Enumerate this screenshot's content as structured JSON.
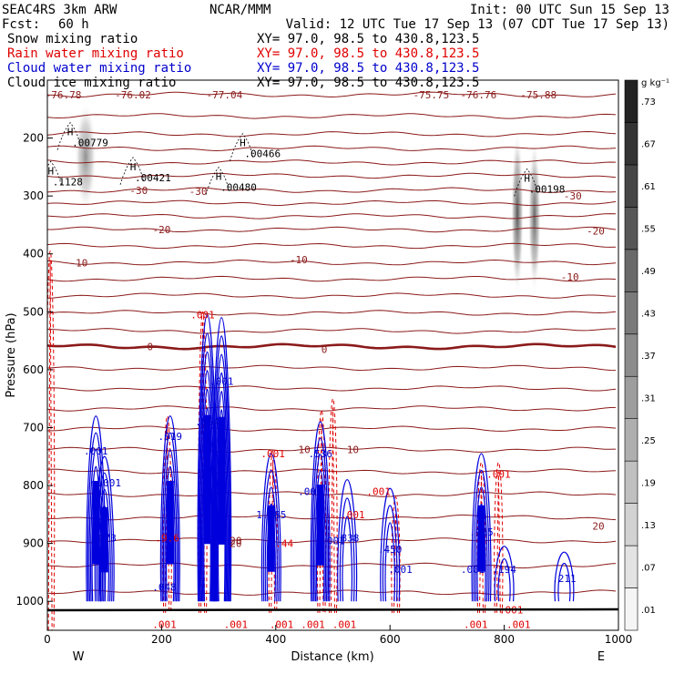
{
  "header": {
    "model": "SEAC4RS   3km ARW",
    "institution": "NCAR/MMM",
    "init": "Init: 00 UTC Sun 15 Sep 13",
    "fcst_label": "Fcst:",
    "fcst_value": "60 h",
    "valid": "Valid: 12 UTC Tue 17 Sep 13 (07 CDT Tue 17 Sep 13)"
  },
  "fields": [
    {
      "name": "Snow mixing ratio",
      "xy": "XY=  97.0, 98.5 to 430.8,123.5",
      "color": "#000000"
    },
    {
      "name": "Rain water mixing ratio",
      "xy": "XY=  97.0, 98.5 to 430.8,123.5",
      "color": "#e00000"
    },
    {
      "name": "Cloud water mixing ratio",
      "xy": "XY=  97.0, 98.5 to 430.8,123.5",
      "color": "#0000cc"
    },
    {
      "name": "Cloud ice mixing ratio",
      "xy": "XY=  97.0, 98.5 to 430.8,123.5",
      "color": "#000000"
    }
  ],
  "colorbar": {
    "unit": "g kg⁻¹",
    "labels": [
      ".01",
      ".07",
      ".13",
      ".19",
      ".25",
      ".31",
      ".37",
      ".43",
      ".49",
      ".55",
      ".61",
      ".67",
      ".73"
    ]
  },
  "chart_data": {
    "type": "contour cross-section",
    "xlabel": "Distance (km)",
    "ylabel": "Pressure (hPa)",
    "xlim": [
      0,
      1000
    ],
    "ylim": [
      1050,
      100
    ],
    "x_ticks": [
      "0",
      "200",
      "400",
      "600",
      "800",
      "1000"
    ],
    "y_ticks": [
      "200",
      "300",
      "400",
      "500",
      "600",
      "700",
      "800",
      "900",
      "1000"
    ],
    "x_tick_values": [
      0,
      200,
      400,
      600,
      800,
      1000
    ],
    "y_tick_values": [
      200,
      300,
      400,
      500,
      600,
      700,
      800,
      900,
      1000
    ],
    "direction_labels": [
      "W",
      "E"
    ],
    "temperature_contours": [
      {
        "p": 125,
        "label": "-77.04",
        "lx": 310
      },
      {
        "p": 162,
        "label": "",
        "lx": 0
      },
      {
        "p": 193,
        "label": "",
        "lx": 0
      },
      {
        "p": 218,
        "label": "",
        "lx": 0
      },
      {
        "p": 242,
        "label": "",
        "lx": 0
      },
      {
        "p": 265,
        "label": "",
        "lx": 0
      },
      {
        "p": 290,
        "label": "-30",
        "lx": 160
      },
      {
        "p": 312,
        "label": "",
        "lx": 0
      },
      {
        "p": 335,
        "label": "",
        "lx": 0
      },
      {
        "p": 358,
        "label": "-20",
        "lx": 200
      },
      {
        "p": 386,
        "label": "",
        "lx": 0
      },
      {
        "p": 415,
        "label": "-10",
        "lx": 55
      },
      {
        "p": 443,
        "label": "",
        "lx": 0
      },
      {
        "p": 472,
        "label": "",
        "lx": 0
      },
      {
        "p": 502,
        "label": "",
        "lx": 0
      },
      {
        "p": 533,
        "label": "",
        "lx": 0
      },
      {
        "p": 560,
        "label": "0",
        "lx": 180,
        "bold": true
      },
      {
        "p": 597,
        "label": "",
        "lx": 0
      },
      {
        "p": 632,
        "label": "",
        "lx": 0
      },
      {
        "p": 667,
        "label": "",
        "lx": 0
      },
      {
        "p": 702,
        "label": "",
        "lx": 0
      },
      {
        "p": 738,
        "label": "10",
        "lx": 450
      },
      {
        "p": 776,
        "label": "",
        "lx": 0
      },
      {
        "p": 815,
        "label": "",
        "lx": 0
      },
      {
        "p": 855,
        "label": "",
        "lx": 0
      },
      {
        "p": 895,
        "label": "20",
        "lx": 330
      },
      {
        "p": 938,
        "label": "",
        "lx": 0
      },
      {
        "p": 985,
        "label": "",
        "lx": 0
      }
    ],
    "extra_temperature_labels": [
      {
        "x": 28,
        "p": 125,
        "t": "-76.78"
      },
      {
        "x": 150,
        "p": 125,
        "t": "-76.02"
      },
      {
        "x": 672,
        "p": 125,
        "t": "-75.75"
      },
      {
        "x": 755,
        "p": 125,
        "t": "-76.76"
      },
      {
        "x": 860,
        "p": 125,
        "t": "-75.88"
      },
      {
        "x": 264,
        "p": 292,
        "t": "-30"
      },
      {
        "x": 920,
        "p": 300,
        "t": "-30"
      },
      {
        "x": 960,
        "p": 360,
        "t": "-20"
      },
      {
        "x": 440,
        "p": 410,
        "t": "-10"
      },
      {
        "x": 915,
        "p": 440,
        "t": "-10"
      },
      {
        "x": 485,
        "p": 565,
        "t": "0"
      },
      {
        "x": 535,
        "p": 738,
        "t": "10"
      },
      {
        "x": 330,
        "p": 900,
        "t": "20"
      },
      {
        "x": 965,
        "p": 870,
        "t": "20"
      }
    ],
    "ice_maxima": [
      {
        "x": 40,
        "p": 208,
        "label": ".00779"
      },
      {
        "x": 6,
        "p": 275,
        "label": ".1128"
      },
      {
        "x": 150,
        "p": 268,
        "label": ".00421"
      },
      {
        "x": 300,
        "p": 285,
        "label": ".00480"
      },
      {
        "x": 342,
        "p": 227,
        "label": ".00466"
      },
      {
        "x": 840,
        "p": 288,
        "label": ".00198"
      }
    ],
    "shaded_ice": [
      {
        "x": 67,
        "p": 232,
        "rx": 12,
        "ry": 60,
        "v": 0.25
      },
      {
        "x": 823,
        "p": 330,
        "rx": 7,
        "ry": 90,
        "v": 0.67
      },
      {
        "x": 853,
        "p": 335,
        "rx": 7,
        "ry": 85,
        "v": 0.5
      }
    ],
    "cloud_water_columns": [
      {
        "x": 85,
        "top": 680,
        "bottom": 1000,
        "label": ".001",
        "lp": 740
      },
      {
        "x": 100,
        "top": 750,
        "bottom": 1000,
        "label": ".673",
        "lp": 890
      },
      {
        "x": 215,
        "top": 680,
        "bottom": 1000,
        "label": ".019",
        "lp": 715
      },
      {
        "x": 280,
        "top": 505,
        "bottom": 1000,
        "label": ".854",
        "lp": 690
      },
      {
        "x": 305,
        "top": 510,
        "bottom": 1000,
        "label": ".001",
        "lp": 620
      },
      {
        "x": 392,
        "top": 745,
        "bottom": 1000,
        "label": "1.085",
        "lp": 850
      },
      {
        "x": 478,
        "top": 690,
        "bottom": 1000,
        "label": ".536",
        "lp": 745
      },
      {
        "x": 525,
        "top": 790,
        "bottom": 1000,
        "label": ".838",
        "lp": 890
      },
      {
        "x": 600,
        "top": 805,
        "bottom": 1000,
        "label": ".450",
        "lp": 910
      },
      {
        "x": 760,
        "top": 745,
        "bottom": 1000,
        "label": ".985",
        "lp": 880
      },
      {
        "x": 800,
        "top": 905,
        "bottom": 1000,
        "label": ".194",
        "lp": 945
      },
      {
        "x": 905,
        "top": 915,
        "bottom": 1000,
        "label": ".211",
        "lp": 960
      }
    ],
    "rain_columns": [
      {
        "x": 5,
        "top": 395,
        "bottom": 1050
      },
      {
        "x": 210,
        "top": 680,
        "bottom": 1020
      },
      {
        "x": 272,
        "top": 500,
        "bottom": 1020,
        "label": ".001",
        "lp": 505
      },
      {
        "x": 395,
        "top": 740,
        "bottom": 1020,
        "label": ".001",
        "lp": 745
      },
      {
        "x": 480,
        "top": 670,
        "bottom": 1020
      },
      {
        "x": 500,
        "top": 650,
        "bottom": 1020
      },
      {
        "x": 610,
        "top": 820,
        "bottom": 1020
      },
      {
        "x": 760,
        "top": 760,
        "bottom": 1020
      },
      {
        "x": 790,
        "top": 760,
        "bottom": 1020,
        "label": ".001",
        "lp": 780
      }
    ],
    "cloud_small_labels": [
      {
        "x": 210,
        "p": 890,
        "t": ".9.6",
        "c": "red"
      },
      {
        "x": 415,
        "p": 900,
        "t": ".44",
        "c": "red"
      },
      {
        "x": 500,
        "p": 895,
        "t": ".001",
        "c": "blue"
      },
      {
        "x": 618,
        "p": 945,
        "t": ".001",
        "c": "blue"
      },
      {
        "x": 745,
        "p": 945,
        "t": ".001",
        "c": "blue"
      },
      {
        "x": 205,
        "p": 975,
        "t": ".048",
        "c": "blue"
      },
      {
        "x": 460,
        "p": 810,
        "t": ".001",
        "c": "blue"
      },
      {
        "x": 108,
        "p": 795,
        "t": ".001",
        "c": "blue"
      },
      {
        "x": 580,
        "p": 810,
        "t": ".001",
        "c": "red"
      },
      {
        "x": 535,
        "p": 850,
        "t": ".001",
        "c": "red"
      },
      {
        "x": 520,
        "p": 1040,
        "t": ".001",
        "c": "red"
      },
      {
        "x": 825,
        "p": 1040,
        "t": ".001",
        "c": "red"
      },
      {
        "x": 750,
        "p": 1040,
        "t": ".001",
        "c": "red"
      },
      {
        "x": 205,
        "p": 1040,
        "t": ".001",
        "c": "red"
      },
      {
        "x": 330,
        "p": 1040,
        "t": ".001",
        "c": "red"
      },
      {
        "x": 410,
        "p": 1040,
        "t": ".001",
        "c": "red"
      },
      {
        "x": 465,
        "p": 1040,
        "t": ".001",
        "c": "red"
      },
      {
        "x": 812,
        "p": 1015,
        "t": ".001",
        "c": "red"
      }
    ]
  }
}
